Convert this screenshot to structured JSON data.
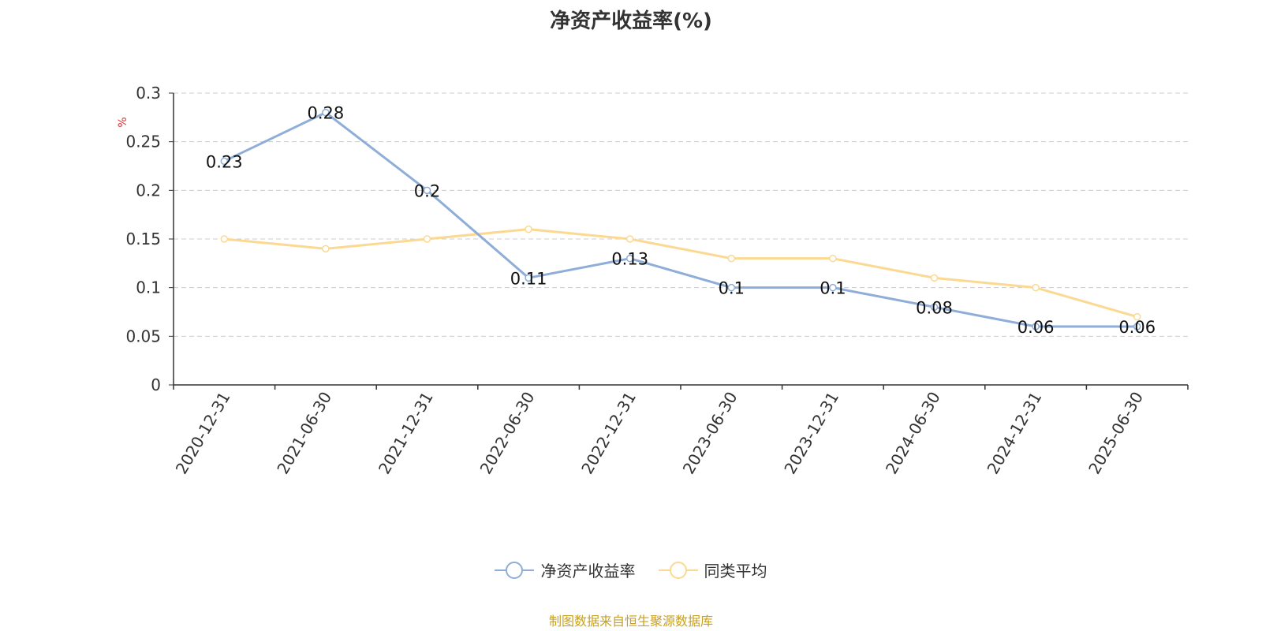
{
  "title": "净资产收益率(%)",
  "source_note": "制图数据来自恒生聚源数据库",
  "colors": {
    "series_main": "#8eadd8",
    "series_avg": "#fcd992",
    "axis": "#333333",
    "grid": "#cccccc",
    "unit_label": "#e03030"
  },
  "chart_data": {
    "type": "line",
    "title": "净资产收益率(%)",
    "ylabel": "%",
    "ylim": [
      0,
      0.3
    ],
    "yticks": [
      0,
      0.05,
      0.1,
      0.15,
      0.2,
      0.25,
      0.3
    ],
    "ytick_labels": [
      "0",
      "0.05",
      "0.1",
      "0.15",
      "0.2",
      "0.25",
      "0.3"
    ],
    "grid": "horizontal dashed",
    "legend_position": "bottom-center",
    "categories": [
      "2020-12-31",
      "2021-06-30",
      "2021-12-31",
      "2022-06-30",
      "2022-12-31",
      "2023-06-30",
      "2023-12-31",
      "2024-06-30",
      "2024-12-31",
      "2025-06-30"
    ],
    "series": [
      {
        "name": "净资产收益率",
        "values": [
          0.23,
          0.28,
          0.2,
          0.11,
          0.13,
          0.1,
          0.1,
          0.08,
          0.06,
          0.06
        ],
        "data_labels": [
          "0.23",
          "0.28",
          "0.2",
          "0.11",
          "0.13",
          "0.1",
          "0.1",
          "0.08",
          "0.06",
          "0.06"
        ]
      },
      {
        "name": "同类平均",
        "values": [
          0.15,
          0.14,
          0.15,
          0.16,
          0.15,
          0.13,
          0.13,
          0.11,
          0.1,
          0.07
        ]
      }
    ]
  }
}
